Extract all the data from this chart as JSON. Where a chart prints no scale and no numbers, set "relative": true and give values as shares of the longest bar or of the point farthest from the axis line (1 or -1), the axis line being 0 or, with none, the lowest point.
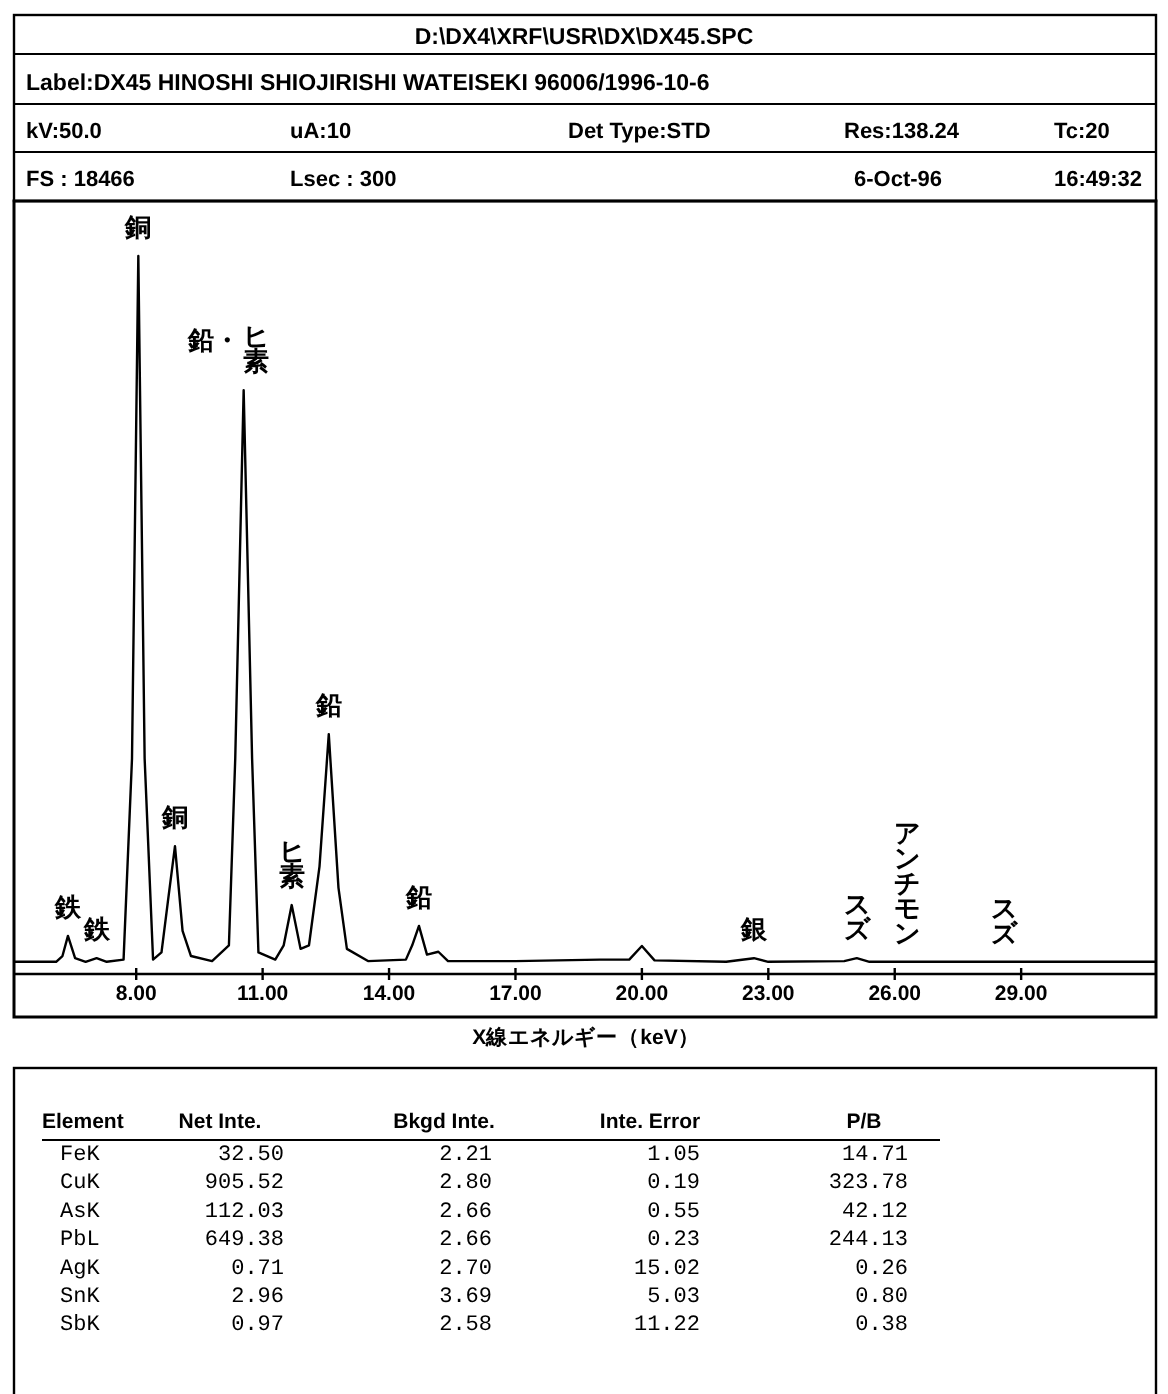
{
  "chart_data": {
    "type": "line",
    "relative": true,
    "color": "#000000",
    "title": "D:\\DX4\\XRF\\USR\\DX\\DX45.SPC",
    "subtitle": "Label:DX45 HINOSHI SHIOJIRISHI WATEISEKI 96006/1996-10-6",
    "xlabel": "X線エネルギー（keV）",
    "xlim": [
      5.1,
      32.2
    ],
    "xticks": [
      {
        "value": 8,
        "label": "8.00"
      },
      {
        "value": 11,
        "label": "11.00"
      },
      {
        "value": 14,
        "label": "14.00"
      },
      {
        "value": 17,
        "label": "17.00"
      },
      {
        "value": 20,
        "label": "20.00"
      },
      {
        "value": 23,
        "label": "23.00"
      },
      {
        "value": 26,
        "label": "26.00"
      },
      {
        "value": 29,
        "label": "29.00"
      }
    ],
    "x": [
      5.1,
      6.1,
      6.25,
      6.38,
      6.55,
      6.8,
      7.06,
      7.3,
      7.7,
      7.9,
      8.05,
      8.2,
      8.4,
      8.6,
      8.75,
      8.92,
      9.1,
      9.3,
      9.8,
      10.2,
      10.35,
      10.55,
      10.75,
      10.9,
      11.3,
      11.5,
      11.69,
      11.9,
      12.1,
      12.35,
      12.57,
      12.8,
      13.0,
      13.5,
      14.4,
      14.55,
      14.71,
      14.9,
      15.17,
      15.4,
      17,
      19,
      19.7,
      20.0,
      20.3,
      22,
      22.66,
      23,
      24.8,
      25.1,
      25.4,
      32.2
    ],
    "values": [
      0.017,
      0.017,
      0.025,
      0.053,
      0.022,
      0.017,
      0.022,
      0.017,
      0.02,
      0.3,
      1.0,
      0.3,
      0.02,
      0.03,
      0.1,
      0.178,
      0.06,
      0.025,
      0.018,
      0.04,
      0.3,
      0.813,
      0.3,
      0.03,
      0.02,
      0.04,
      0.096,
      0.035,
      0.04,
      0.15,
      0.334,
      0.12,
      0.035,
      0.018,
      0.02,
      0.04,
      0.067,
      0.027,
      0.031,
      0.018,
      0.018,
      0.02,
      0.02,
      0.039,
      0.019,
      0.017,
      0.022,
      0.017,
      0.018,
      0.022,
      0.017,
      0.017
    ],
    "annotations": [
      {
        "text": "鉄",
        "x": 6.38,
        "y": 0.053
      },
      {
        "text": "鉄",
        "x": 7.06,
        "y": 0.022
      },
      {
        "text": "銅",
        "x": 8.05,
        "y": 1.0
      },
      {
        "text": "銅",
        "x": 8.92,
        "y": 0.178
      },
      {
        "text": "鉛・ヒ素",
        "x": 10.55,
        "y": 0.813
      },
      {
        "text": "ヒ素",
        "x": 11.69,
        "y": 0.096
      },
      {
        "text": "鉛",
        "x": 12.57,
        "y": 0.334
      },
      {
        "text": "鉛",
        "x": 14.71,
        "y": 0.067
      },
      {
        "text": "銀",
        "x": 22.66,
        "y": 0.022
      },
      {
        "text": "スズ",
        "x": 25.1,
        "y": 0.022
      },
      {
        "text": "アンチモン",
        "x": 26.3,
        "y": 0.017
      },
      {
        "text": "スズ",
        "x": 28.6,
        "y": 0.017
      },
      "kV:50.0",
      "uA:10",
      "Det Type:STD",
      "Res:138.24",
      "Tc:20",
      "FS : 18466",
      "Lsec : 300",
      "6-Oct-96",
      "16:49:32",
      "Element",
      "Net Inte.",
      "Bkgd Inte.",
      "Inte. Error",
      "P/B",
      "FeK",
      "32.50",
      "2.21",
      "1.05",
      "14.71",
      "CuK",
      "905.52",
      "2.80",
      "0.19",
      "323.78",
      "AsK",
      "112.03",
      "2.66",
      "0.55",
      "42.12",
      "PbL",
      "649.38",
      "2.66",
      "0.23",
      "244.13",
      "AgK",
      "0.71",
      "2.70",
      "15.02",
      "0.26",
      "SnK",
      "2.96",
      "3.69",
      "5.03",
      "0.80",
      "SbK",
      "0.97",
      "2.58",
      "11.22",
      "0.38"
    ]
  }
}
